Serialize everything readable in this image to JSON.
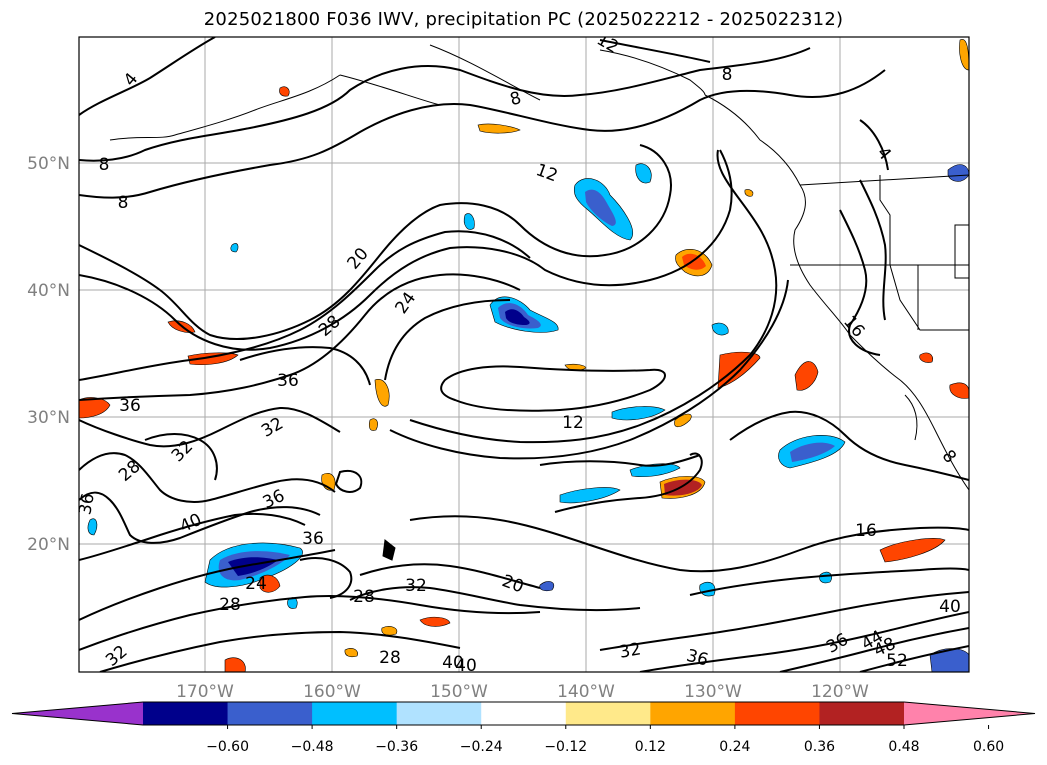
{
  "title": "2025021800 F036 IWV, precipitation PC (2025022212 - 2025022312)",
  "map": {
    "lat_labels": [
      "50°N",
      "40°N",
      "30°N",
      "20°N"
    ],
    "lon_labels": [
      "170°W",
      "160°W",
      "150°W",
      "140°W",
      "130°W",
      "120°W"
    ],
    "contour_labels": [
      "4",
      "8",
      "8",
      "8",
      "8",
      "12",
      "12",
      "12",
      "16",
      "16",
      "20",
      "20",
      "24",
      "24",
      "28",
      "28",
      "28",
      "28",
      "28",
      "32",
      "32",
      "32",
      "32",
      "32",
      "36",
      "36",
      "36",
      "36",
      "36",
      "36",
      "36",
      "40",
      "40",
      "40",
      "40",
      "44",
      "48",
      "52",
      "4",
      "8"
    ]
  },
  "colorbar": {
    "ticks": [
      "−0.60",
      "−0.48",
      "−0.36",
      "−0.24",
      "−0.12",
      "0.12",
      "0.24",
      "0.36",
      "0.48",
      "0.60"
    ],
    "colors": [
      "#9932cc",
      "#00008b",
      "#3a5fcd",
      "#00bfff",
      "#b0e2ff",
      "#ffffff",
      "#ffe98a",
      "#ffa500",
      "#ff4500",
      "#b22222",
      "#ff82ab"
    ]
  }
}
